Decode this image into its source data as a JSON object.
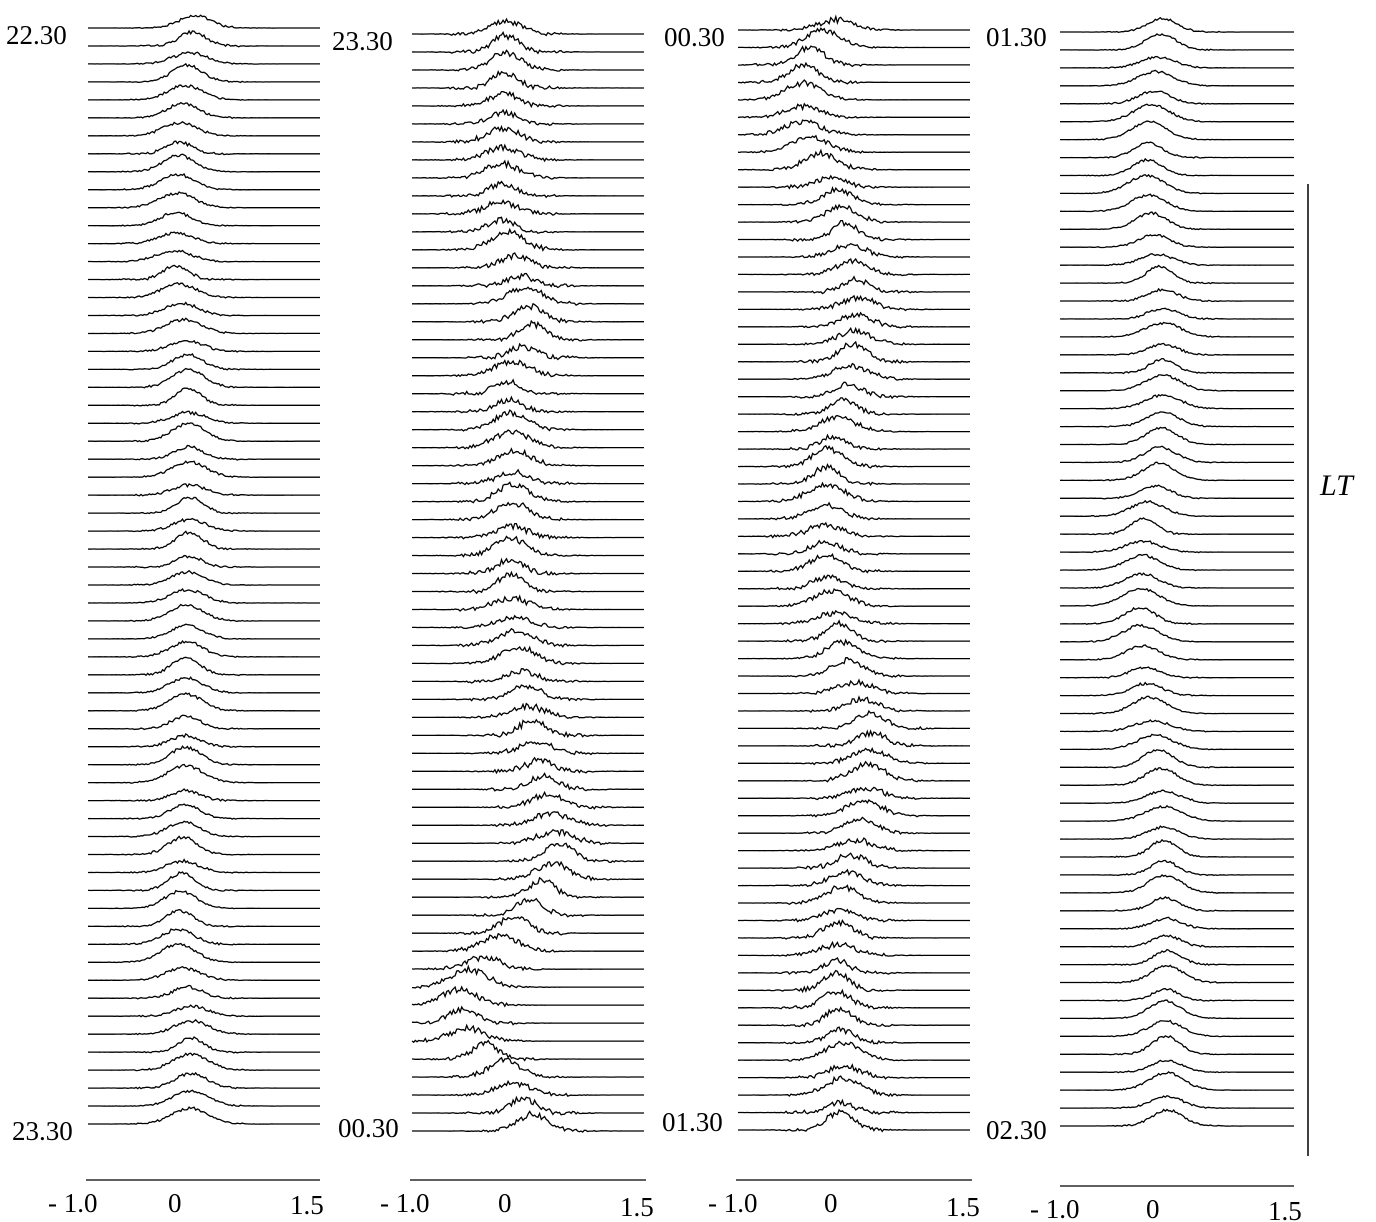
{
  "chart_data": [
    {
      "type": "line",
      "start_label": "22.30",
      "end_label": "23.30",
      "xlim": [
        -1.0,
        1.5
      ],
      "tick_labels": [
        "- 1.0",
        "0",
        "1.5"
      ],
      "traces": 62,
      "peak_track": [
        [
          0,
          0.15
        ],
        [
          0.1,
          -0.01
        ],
        [
          0.22,
          -0.07
        ],
        [
          0.3,
          0.07
        ],
        [
          0.45,
          0.1
        ],
        [
          0.55,
          0.06
        ],
        [
          0.7,
          0.05
        ],
        [
          0.8,
          0.0
        ],
        [
          0.85,
          -0.04
        ],
        [
          0.9,
          0.12
        ],
        [
          1.0,
          0.1
        ]
      ],
      "noise": 0.5
    },
    {
      "type": "line",
      "start_label": "23.30",
      "end_label": "00.30",
      "xlim": [
        -1.0,
        1.5
      ],
      "tick_labels": [
        "- 1.0",
        "0",
        "1.5"
      ],
      "traces": 62,
      "peak_track": [
        [
          0,
          0.02
        ],
        [
          0.18,
          -0.05
        ],
        [
          0.22,
          0.15
        ],
        [
          0.28,
          0.3
        ],
        [
          0.32,
          0.02
        ],
        [
          0.4,
          0.1
        ],
        [
          0.5,
          0.05
        ],
        [
          0.55,
          0.1
        ],
        [
          0.6,
          0.2
        ],
        [
          0.68,
          0.4
        ],
        [
          0.76,
          0.6
        ],
        [
          0.8,
          0.3
        ],
        [
          0.84,
          -0.1
        ],
        [
          0.88,
          -0.5
        ],
        [
          0.92,
          -0.4
        ],
        [
          0.95,
          0.0
        ],
        [
          1.0,
          0.3
        ]
      ],
      "noise": 1.0
    },
    {
      "type": "line",
      "start_label": "00.30",
      "end_label": "01.30",
      "xlim": [
        -1.0,
        1.5
      ],
      "tick_labels": [
        "- 1.0",
        "0",
        "1.5"
      ],
      "traces": 64,
      "peak_track": [
        [
          0,
          0.05
        ],
        [
          0.04,
          -0.3
        ],
        [
          0.1,
          -0.3
        ],
        [
          0.15,
          0.05
        ],
        [
          0.25,
          0.3
        ],
        [
          0.33,
          0.2
        ],
        [
          0.4,
          -0.05
        ],
        [
          0.5,
          -0.05
        ],
        [
          0.58,
          0.15
        ],
        [
          0.64,
          0.45
        ],
        [
          0.72,
          0.35
        ],
        [
          0.8,
          0.1
        ],
        [
          0.88,
          0.05
        ],
        [
          0.95,
          0.15
        ],
        [
          1.0,
          0.1
        ]
      ],
      "noise": 0.9
    },
    {
      "type": "line",
      "start_label": "01.30",
      "end_label": "02.30",
      "xlim": [
        -1.0,
        1.5
      ],
      "tick_labels": [
        "- 1.0",
        "0",
        "1.5"
      ],
      "traces": 62,
      "peak_track": [
        [
          0,
          0.1
        ],
        [
          0.1,
          -0.05
        ],
        [
          0.15,
          -0.08
        ],
        [
          0.25,
          0.1
        ],
        [
          0.35,
          0.1
        ],
        [
          0.42,
          0.05
        ],
        [
          0.45,
          -0.1
        ],
        [
          0.55,
          -0.15
        ],
        [
          0.62,
          -0.05
        ],
        [
          0.7,
          0.1
        ],
        [
          0.8,
          0.12
        ],
        [
          0.86,
          0.15
        ],
        [
          0.9,
          0.12
        ],
        [
          1.0,
          0.15
        ]
      ],
      "noise": 0.4
    }
  ],
  "time_axis_label": "LT"
}
